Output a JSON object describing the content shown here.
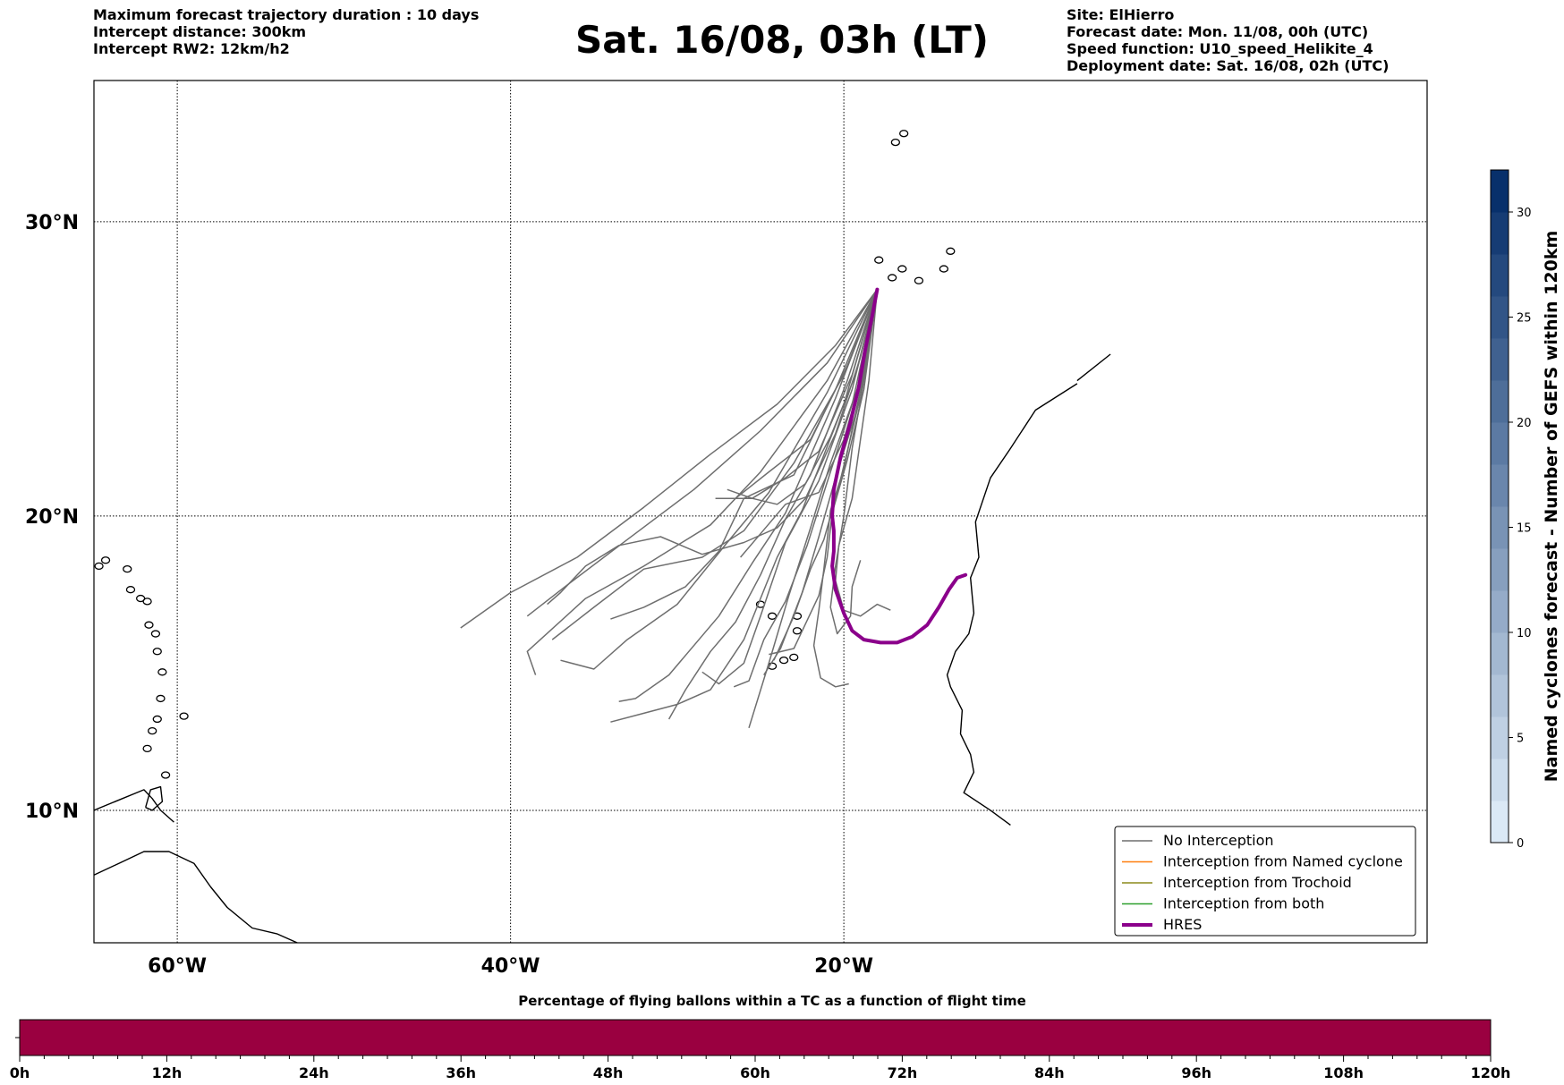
{
  "header": {
    "left_lines": [
      "Maximum forecast trajectory duration : 10 days",
      "Intercept distance: 300km",
      "Intercept RW2: 12km/h2"
    ],
    "title": "Sat. 16/08, 03h (LT)",
    "right_lines": [
      "Site: ElHierro",
      "Forecast date: Mon. 11/08, 00h (UTC)",
      "Speed function: U10_speed_Helikite_4",
      "Deployment date: Sat. 16/08, 02h (UTC)"
    ]
  },
  "map": {
    "lon_range": [
      -65,
      15
    ],
    "lat_range": [
      5.5,
      34.8
    ],
    "lat_ticks": [
      {
        "value": 30,
        "label": "30°N"
      },
      {
        "value": 20,
        "label": "20°N"
      },
      {
        "value": 10,
        "label": "10°N"
      }
    ],
    "lon_ticks": [
      {
        "value": -60,
        "label": "60°W"
      },
      {
        "value": -40,
        "label": "40°W"
      },
      {
        "value": -20,
        "label": "20°W"
      }
    ],
    "colors": {
      "ensemble": "#6e6e6e",
      "hres": "#8b008b",
      "coast": "#000000"
    },
    "legend": {
      "placement": "lower-right",
      "entries": [
        {
          "label": "No Interception",
          "color": "#6e6e6e"
        },
        {
          "label": "Interception from Named cyclone",
          "color": "#ff7f0e"
        },
        {
          "label": "Interception from Trochoid",
          "color": "#8c8a1c"
        },
        {
          "label": "Interception from both",
          "color": "#2ca02c"
        },
        {
          "label": "HRES",
          "color": "#8b008b"
        }
      ]
    },
    "origin": {
      "lon": -18.0,
      "lat": 27.7
    },
    "ensemble_tracks": [
      [
        [
          -18.0,
          27.7
        ],
        [
          -20.5,
          25.8
        ],
        [
          -24,
          23.8
        ],
        [
          -28,
          22.1
        ],
        [
          -32,
          20.3
        ],
        [
          -36,
          18.6
        ],
        [
          -40,
          17.4
        ],
        [
          -43,
          16.2
        ]
      ],
      [
        [
          -18.0,
          27.7
        ],
        [
          -21,
          25.2
        ],
        [
          -25,
          22.9
        ],
        [
          -29,
          20.9
        ],
        [
          -33,
          19.2
        ],
        [
          -36.5,
          17.7
        ],
        [
          -39,
          16.6
        ]
      ],
      [
        [
          -18.0,
          27.7
        ],
        [
          -21,
          24.6
        ],
        [
          -25,
          21.5
        ],
        [
          -28,
          19.7
        ],
        [
          -32,
          18.3
        ],
        [
          -35.5,
          17.2
        ],
        [
          -39,
          15.4
        ],
        [
          -38.5,
          14.6
        ]
      ],
      [
        [
          -18.0,
          27.7
        ],
        [
          -20,
          24.8
        ],
        [
          -23,
          21.8
        ],
        [
          -26,
          19.5
        ],
        [
          -28.5,
          18.6
        ],
        [
          -32,
          18.2
        ],
        [
          -35,
          16.9
        ],
        [
          -37.5,
          15.8
        ]
      ],
      [
        [
          -18.0,
          27.7
        ],
        [
          -21,
          24.2
        ],
        [
          -24.5,
          20.8
        ],
        [
          -27,
          19.1
        ],
        [
          -30,
          17.0
        ],
        [
          -33,
          15.8
        ],
        [
          -35,
          14.8
        ],
        [
          -37,
          15.1
        ]
      ],
      [
        [
          -18.0,
          27.7
        ],
        [
          -20.5,
          24.0
        ],
        [
          -23.5,
          20.1
        ],
        [
          -25.5,
          18.4
        ],
        [
          -27.5,
          16.6
        ],
        [
          -30.5,
          14.6
        ],
        [
          -32.5,
          13.8
        ],
        [
          -33.5,
          13.7
        ]
      ],
      [
        [
          -18.0,
          27.7
        ],
        [
          -20,
          23.8
        ],
        [
          -22.5,
          20.2
        ],
        [
          -24,
          18.6
        ],
        [
          -26,
          15.8
        ],
        [
          -28,
          14.1
        ],
        [
          -30,
          13.6
        ],
        [
          -32,
          13.3
        ],
        [
          -34,
          13.0
        ]
      ],
      [
        [
          -18.0,
          27.7
        ],
        [
          -20.5,
          24.3
        ],
        [
          -23,
          21.4
        ],
        [
          -26,
          20.6
        ],
        [
          -27.5,
          18.8
        ],
        [
          -29.5,
          17.6
        ],
        [
          -32,
          16.9
        ],
        [
          -34,
          16.5
        ]
      ],
      [
        [
          -18.0,
          27.7
        ],
        [
          -19.8,
          24.6
        ],
        [
          -22,
          21.4
        ],
        [
          -23.5,
          19.9
        ],
        [
          -25,
          18.0
        ],
        [
          -26.5,
          16.4
        ],
        [
          -28,
          15.4
        ],
        [
          -29.5,
          14.1
        ],
        [
          -30.5,
          13.1
        ]
      ],
      [
        [
          -18.0,
          27.7
        ],
        [
          -19.5,
          24.3
        ],
        [
          -21.5,
          21.2
        ],
        [
          -23.5,
          19.1
        ],
        [
          -25,
          16.6
        ],
        [
          -26,
          15.0
        ],
        [
          -27.5,
          14.3
        ],
        [
          -28.5,
          14.7
        ]
      ],
      [
        [
          -18.0,
          27.7
        ],
        [
          -19.8,
          25.1
        ],
        [
          -22,
          22.6
        ],
        [
          -24.5,
          21.5
        ],
        [
          -26.5,
          20.6
        ],
        [
          -27.7,
          20.6
        ]
      ],
      [
        [
          -18.0,
          27.7
        ],
        [
          -19.2,
          24.3
        ],
        [
          -20.8,
          21.8
        ],
        [
          -22,
          19.6
        ],
        [
          -23.3,
          17.3
        ],
        [
          -24.5,
          15.0
        ],
        [
          -25.7,
          12.8
        ]
      ],
      [
        [
          -18.0,
          27.7
        ],
        [
          -19.0,
          24.0
        ],
        [
          -20.5,
          21.3
        ],
        [
          -21.5,
          19.3
        ],
        [
          -22.5,
          17.4
        ],
        [
          -23.8,
          15.5
        ],
        [
          -24.8,
          14.6
        ]
      ],
      [
        [
          -18.0,
          27.7
        ],
        [
          -19.5,
          23.8
        ],
        [
          -21.2,
          20.8
        ],
        [
          -22.2,
          19.0
        ],
        [
          -23.5,
          17.1
        ],
        [
          -24.8,
          15.8
        ],
        [
          -25.7,
          14.4
        ],
        [
          -26.6,
          14.2
        ]
      ],
      [
        [
          -18.0,
          27.7
        ],
        [
          -19.2,
          23.6
        ],
        [
          -20.3,
          21.0
        ],
        [
          -21.2,
          19.2
        ],
        [
          -22.0,
          18.2
        ],
        [
          -23.0,
          16.6
        ],
        [
          -24.2,
          15.1
        ]
      ],
      [
        [
          -18.0,
          27.7
        ],
        [
          -18.8,
          24.3
        ],
        [
          -19.8,
          21.9
        ],
        [
          -20.7,
          20.1
        ],
        [
          -21.0,
          18.6
        ],
        [
          -21.5,
          17.3
        ],
        [
          -23.0,
          15.5
        ],
        [
          -24.5,
          15.3
        ]
      ],
      [
        [
          -18.0,
          27.7
        ],
        [
          -18.5,
          24.6
        ],
        [
          -19.0,
          22.6
        ],
        [
          -19.5,
          20.6
        ],
        [
          -20.3,
          19.0
        ],
        [
          -20.5,
          17.8
        ],
        [
          -20.0,
          16.8
        ],
        [
          -19.0,
          16.6
        ],
        [
          -18.0,
          17.0
        ],
        [
          -17.2,
          16.8
        ]
      ],
      [
        [
          -18.0,
          27.7
        ],
        [
          -19.0,
          24.3
        ],
        [
          -20.0,
          21.6
        ],
        [
          -20.8,
          20.2
        ],
        [
          -21.2,
          18.2
        ],
        [
          -21.5,
          16.8
        ],
        [
          -21.8,
          15.6
        ],
        [
          -21.4,
          14.5
        ],
        [
          -20.5,
          14.2
        ],
        [
          -19.7,
          14.3
        ]
      ],
      [
        [
          -18.0,
          27.7
        ],
        [
          -18.8,
          24.6
        ],
        [
          -19.5,
          22.3
        ],
        [
          -20.0,
          20.0
        ],
        [
          -20.5,
          18.3
        ],
        [
          -20.8,
          16.9
        ],
        [
          -20.4,
          16.0
        ],
        [
          -19.6,
          16.6
        ],
        [
          -19.5,
          17.6
        ],
        [
          -19.0,
          18.5
        ]
      ],
      [
        [
          -18.0,
          27.7
        ],
        [
          -19.0,
          25.4
        ],
        [
          -20.5,
          22.8
        ],
        [
          -22.3,
          20.6
        ],
        [
          -24.0,
          19.6
        ],
        [
          -26.0,
          19.1
        ],
        [
          -28.5,
          18.7
        ],
        [
          -31.0,
          19.3
        ],
        [
          -33.5,
          19.0
        ],
        [
          -35.5,
          18.3
        ],
        [
          -37.0,
          17.4
        ],
        [
          -37.8,
          17.0
        ]
      ],
      [
        [
          -18.0,
          27.7
        ],
        [
          -18.8,
          25.0
        ],
        [
          -20.0,
          22.6
        ],
        [
          -21.5,
          20.8
        ],
        [
          -23.5,
          20.4
        ],
        [
          -25.0,
          19.4
        ],
        [
          -26.2,
          18.6
        ]
      ],
      [
        [
          -18.0,
          27.7
        ],
        [
          -19.5,
          24.8
        ],
        [
          -21.5,
          22.2
        ],
        [
          -23.5,
          21.3
        ],
        [
          -25.5,
          20.6
        ],
        [
          -27.7,
          20.6
        ]
      ],
      [
        [
          -18.0,
          27.7
        ],
        [
          -19.3,
          24.8
        ],
        [
          -20.8,
          22.7
        ],
        [
          -22.3,
          21.1
        ],
        [
          -24.0,
          20.4
        ],
        [
          -25.5,
          20.6
        ],
        [
          -27.0,
          20.9
        ]
      ]
    ],
    "hres_track": [
      [
        -18.0,
        27.7
      ],
      [
        -18.3,
        26.8
      ],
      [
        -18.7,
        25.7
      ],
      [
        -19.1,
        24.4
      ],
      [
        -19.6,
        23.2
      ],
      [
        -20.2,
        22.0
      ],
      [
        -20.6,
        20.9
      ],
      [
        -20.7,
        20.0
      ],
      [
        -20.6,
        19.5
      ],
      [
        -20.6,
        18.8
      ],
      [
        -20.7,
        18.3
      ],
      [
        -20.5,
        17.5
      ],
      [
        -20.0,
        16.7
      ],
      [
        -19.5,
        16.1
      ],
      [
        -18.8,
        15.8
      ],
      [
        -17.8,
        15.7
      ],
      [
        -16.8,
        15.7
      ],
      [
        -15.9,
        15.9
      ],
      [
        -15.0,
        16.3
      ],
      [
        -14.3,
        16.9
      ],
      [
        -13.7,
        17.5
      ],
      [
        -13.2,
        17.9
      ],
      [
        -12.7,
        18.0
      ]
    ],
    "coastlines": {
      "africa": [
        [
          -6,
          24.5
        ],
        [
          -8.5,
          23.6
        ],
        [
          -10,
          22.3
        ],
        [
          -11.2,
          21.3
        ],
        [
          -12.1,
          19.8
        ],
        [
          -11.9,
          18.6
        ],
        [
          -12.4,
          17.9
        ],
        [
          -12.2,
          16.7
        ],
        [
          -12.5,
          16.0
        ],
        [
          -13.3,
          15.4
        ],
        [
          -13.8,
          14.6
        ],
        [
          -13.6,
          14.2
        ],
        [
          -12.9,
          13.4
        ],
        [
          -13.0,
          12.6
        ],
        [
          -12.4,
          11.9
        ],
        [
          -12.2,
          11.3
        ],
        [
          -12.8,
          10.6
        ],
        [
          -11.2,
          10.0
        ],
        [
          -10,
          9.5
        ]
      ],
      "africa_north": [
        [
          -4,
          25.5
        ],
        [
          -6,
          24.6
        ]
      ],
      "south_america": [
        [
          -65,
          7.8
        ],
        [
          -63.5,
          8.2
        ],
        [
          -62,
          8.6
        ],
        [
          -60.5,
          8.6
        ],
        [
          -59,
          8.2
        ],
        [
          -58,
          7.4
        ],
        [
          -57,
          6.7
        ],
        [
          -55.5,
          6.0
        ],
        [
          -54,
          5.8
        ],
        [
          -52.8,
          5.5
        ]
      ],
      "venezuela": [
        [
          -65,
          10.0
        ],
        [
          -63.3,
          10.4
        ],
        [
          -62,
          10.7
        ],
        [
          -61.5,
          10.4
        ],
        [
          -61.0,
          10.0
        ],
        [
          -60.2,
          9.6
        ]
      ],
      "trinidad": [
        [
          -61.9,
          10.1
        ],
        [
          -61.6,
          10.7
        ],
        [
          -61.0,
          10.8
        ],
        [
          -60.9,
          10.3
        ],
        [
          -61.5,
          10.0
        ],
        [
          -61.9,
          10.1
        ]
      ],
      "islands": [
        [
          -64.7,
          18.3
        ],
        [
          -64.3,
          18.5
        ],
        [
          -63.0,
          18.2
        ],
        [
          -62.8,
          17.5
        ],
        [
          -62.2,
          17.2
        ],
        [
          -61.8,
          17.1
        ],
        [
          -61.7,
          16.3
        ],
        [
          -61.3,
          16.0
        ],
        [
          -61.2,
          15.4
        ],
        [
          -60.9,
          14.7
        ],
        [
          -61.0,
          13.8
        ],
        [
          -61.2,
          13.1
        ],
        [
          -61.5,
          12.7
        ],
        [
          -59.6,
          13.2
        ],
        [
          -61.8,
          12.1
        ],
        [
          -60.7,
          11.2
        ]
      ],
      "canaries": [
        [
          -17.9,
          28.7
        ],
        [
          -16.5,
          28.4
        ],
        [
          -15.5,
          28.0
        ],
        [
          -14.0,
          28.4
        ],
        [
          -13.6,
          29.0
        ],
        [
          -17.1,
          28.1
        ]
      ],
      "madeira": [
        [
          -16.9,
          32.7
        ],
        [
          -16.4,
          33.0
        ]
      ],
      "cape_verde": [
        [
          -25.0,
          17.0
        ],
        [
          -24.3,
          16.6
        ],
        [
          -23.6,
          15.1
        ],
        [
          -22.8,
          16.1
        ],
        [
          -22.8,
          16.6
        ],
        [
          -24.3,
          14.9
        ],
        [
          -23.0,
          15.2
        ]
      ]
    }
  },
  "colorbar": {
    "label": "Named cyclones forecast - Number of GEFS within 120km",
    "min": 0,
    "max": 32,
    "ticks": [
      0,
      5,
      10,
      15,
      20,
      25,
      30
    ],
    "colors_light_to_dark": [
      "#dbe9f6",
      "#08306b"
    ]
  },
  "bottom_bar": {
    "title": "Percentage of flying ballons within a TC as a function of flight time",
    "fill_color": "#9a0040",
    "ticks": [
      "0h",
      "12h",
      "24h",
      "36h",
      "48h",
      "60h",
      "72h",
      "84h",
      "96h",
      "108h",
      "120h"
    ]
  }
}
